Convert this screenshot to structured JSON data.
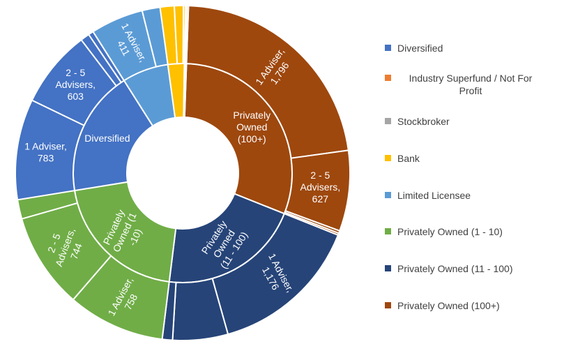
{
  "chart_data": {
    "type": "sunburst",
    "legend_position": "right",
    "colors": {
      "Diversified": "#4472c4",
      "Industry Superfund / Not For Profit": "#ed7d31",
      "Stockbroker": "#a5a5a5",
      "Bank": "#ffc000",
      "Limited Licensee": "#5b9bd5",
      "Privately Owned (1 - 10)": "#70ad47",
      "Privately Owned (11 - 100)": "#264478",
      "Privately Owned (100+)": "#9e480e"
    },
    "legend": [
      "Diversified",
      "Industry Superfund / Not For Profit",
      "Stockbroker",
      "Bank",
      "Limited Licensee",
      "Privately Owned (1 - 10)",
      "Privately Owned (11 - 100)",
      "Privately Owned (100+)"
    ],
    "categories": [
      {
        "name": "Privately Owned (100+)",
        "label": "Privately Owned (100+)",
        "children": [
          {
            "value": 1796,
            "label": "1 Adviser, 1,796"
          },
          {
            "value": 627,
            "label": "2 - 5 Advisers, 627"
          },
          {
            "value": 20,
            "label": ""
          },
          {
            "value": 15,
            "label": ""
          }
        ]
      },
      {
        "name": "Privately Owned (11 - 100)",
        "label": "Privately Owned (11 - 100)",
        "children": [
          {
            "value": 1176,
            "label": "1 Adviser, 1,176"
          },
          {
            "value": 430,
            "label": ""
          },
          {
            "value": 80,
            "label": ""
          }
        ]
      },
      {
        "name": "Privately Owned (1 - 10)",
        "label": "Privately Owned (1 - 10)",
        "children": [
          {
            "value": 758,
            "label": "1 Adviser, 758"
          },
          {
            "value": 744,
            "label": "2 - 5 Advisers, 744"
          },
          {
            "value": 150,
            "label": ""
          }
        ]
      },
      {
        "name": "Diversified",
        "label": "Diversified",
        "children": [
          {
            "value": 783,
            "label": "1 Adviser, 783"
          },
          {
            "value": 603,
            "label": "2 - 5 Advisers, 603"
          },
          {
            "value": 70,
            "label": ""
          },
          {
            "value": 40,
            "label": ""
          }
        ]
      },
      {
        "name": "Limited Licensee",
        "label": "",
        "children": [
          {
            "value": 411,
            "label": "1 Adviser, 411"
          },
          {
            "value": 140,
            "label": ""
          }
        ]
      },
      {
        "name": "Bank",
        "label": "",
        "children": [
          {
            "value": 110,
            "label": ""
          },
          {
            "value": 70,
            "label": ""
          },
          {
            "value": 15,
            "label": ""
          }
        ]
      },
      {
        "name": "Stockbroker",
        "label": "",
        "children": [
          {
            "value": 12,
            "label": ""
          }
        ]
      },
      {
        "name": "Industry Superfund / Not For Profit",
        "label": "",
        "children": [
          {
            "value": 12,
            "label": ""
          }
        ]
      }
    ]
  }
}
